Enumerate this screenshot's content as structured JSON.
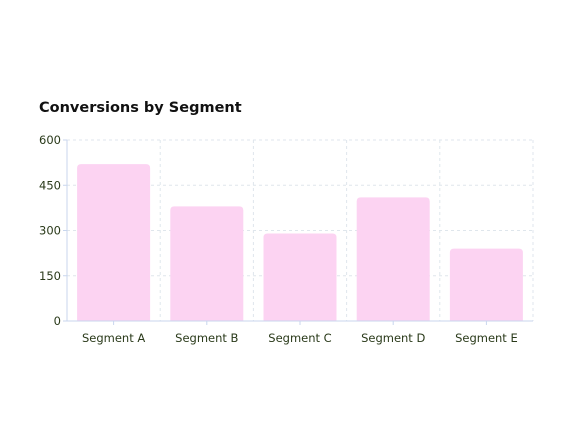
{
  "chart_data": {
    "type": "bar",
    "title": "Conversions by Segment",
    "categories": [
      "Segment A",
      "Segment B",
      "Segment C",
      "Segment D",
      "Segment E"
    ],
    "values": [
      520,
      380,
      290,
      410,
      240
    ],
    "ylim": [
      0,
      600
    ],
    "yticks": [
      0,
      150,
      300,
      450,
      600
    ],
    "grid": true,
    "colors": {
      "bar": "#fcd3f2",
      "grid": "#dfe6ec",
      "axis": "#c8d6ee",
      "tick_text": "#2a3a1a",
      "title_text": "#111111"
    }
  }
}
